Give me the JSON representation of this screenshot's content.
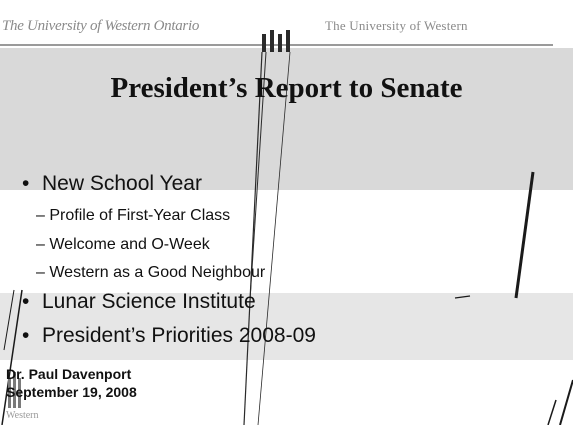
{
  "banner": {
    "left_text": "The University of Western Ontario",
    "right_text": "The University of Western"
  },
  "title": "President’s Report to Senate",
  "bullets": [
    {
      "label": "New School Year",
      "subs": [
        "Profile of First-Year Class",
        "Welcome and O-Week",
        "Western as a Good Neighbour"
      ]
    },
    {
      "label": "Lunar Science Institute",
      "subs": []
    },
    {
      "label": "President’s Priorities 2008-09",
      "subs": []
    }
  ],
  "sub_prefix": "–",
  "bullet_glyph": "•",
  "author": {
    "name": "Dr. Paul Davenport",
    "date": "September 19, 2008"
  },
  "logo": "Western",
  "colors": {
    "panel": "#d9d9d9",
    "band": "#e6e6e6",
    "text": "#111111"
  }
}
